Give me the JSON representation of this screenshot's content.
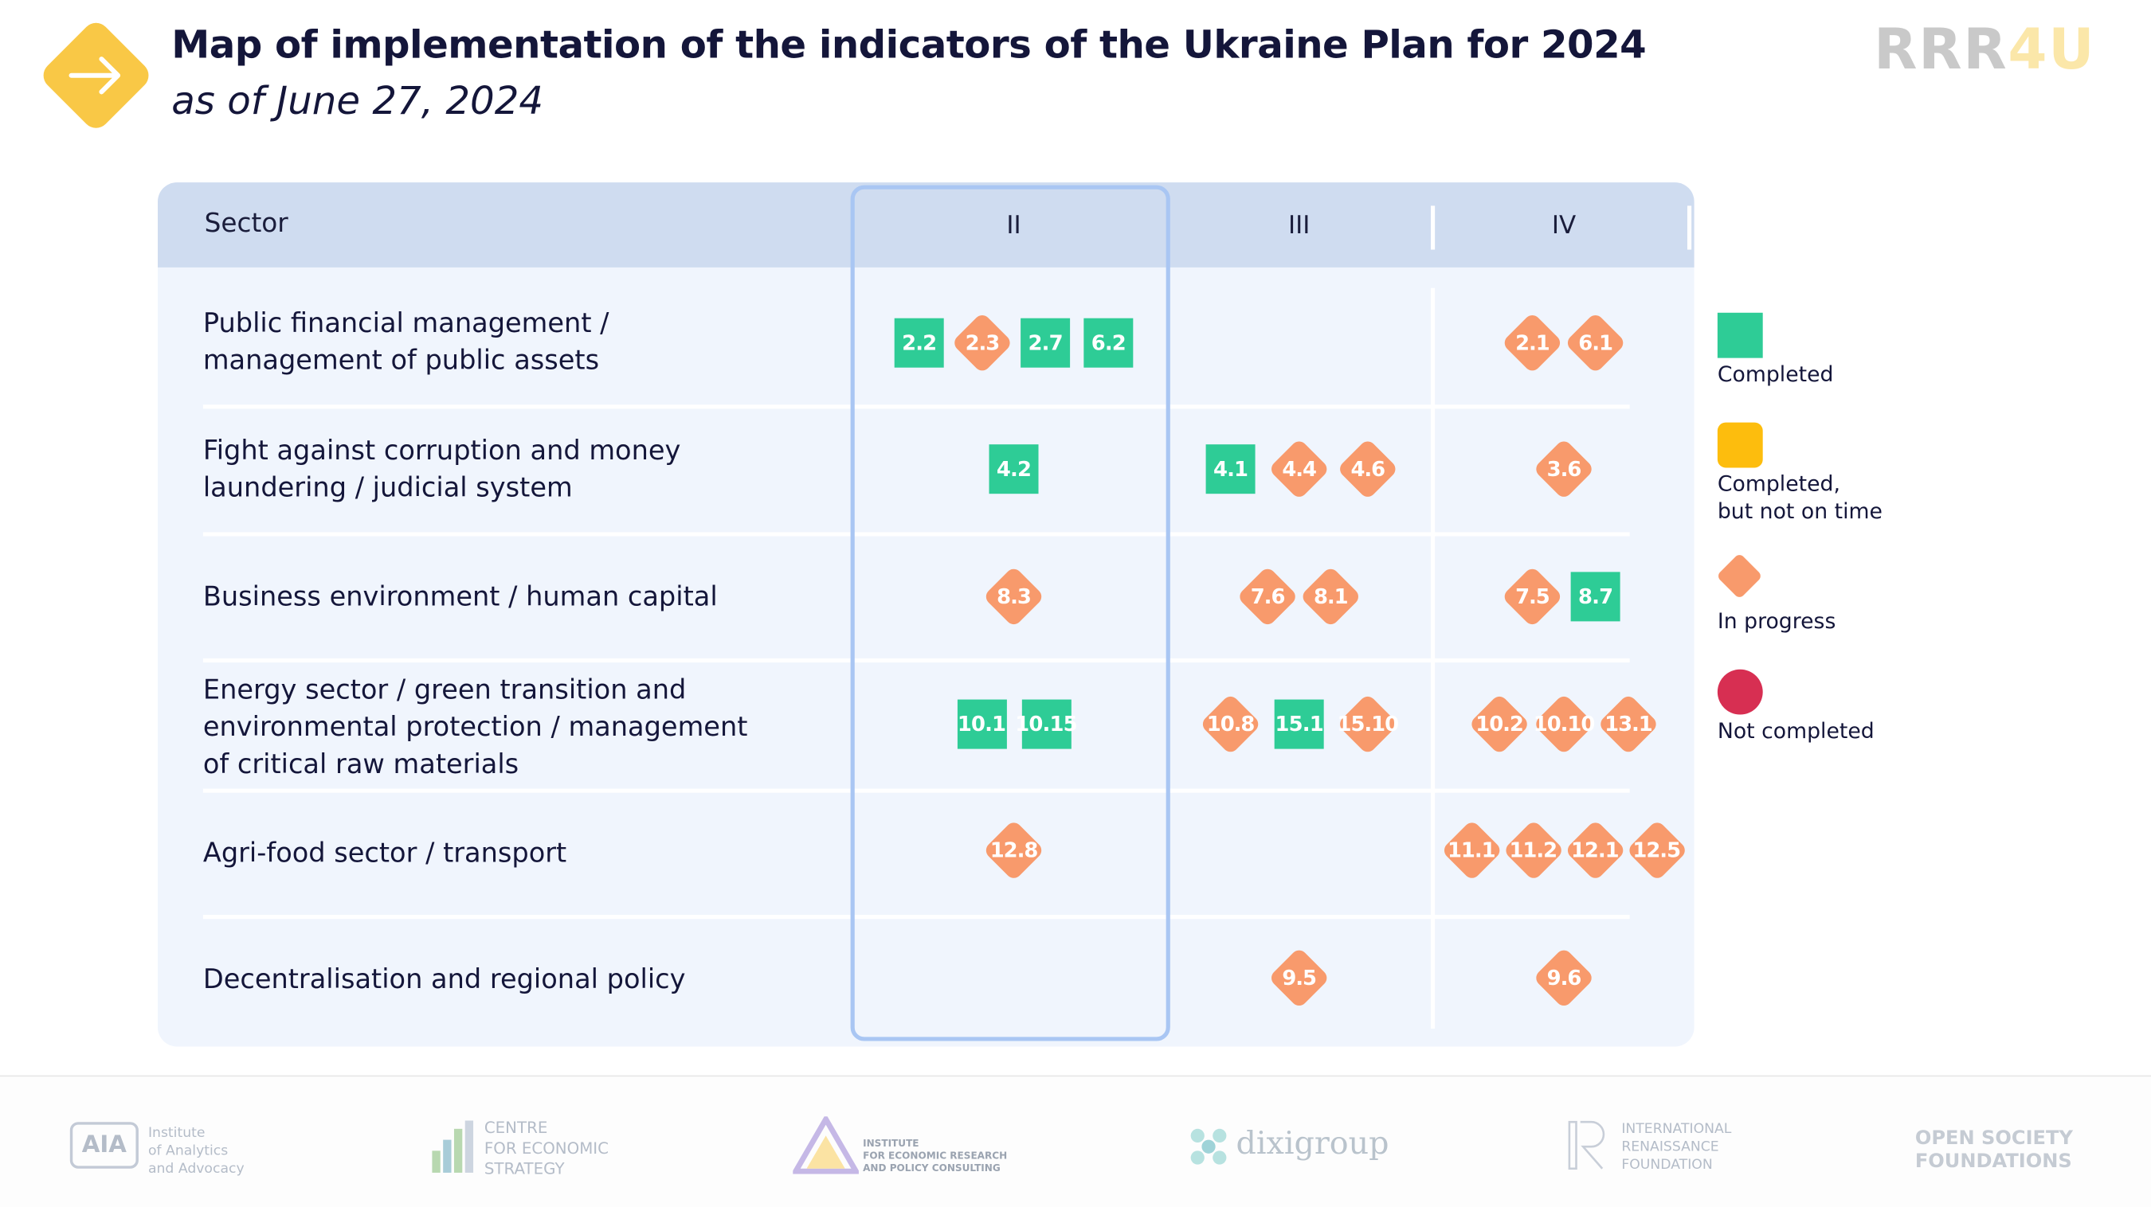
{
  "header": {
    "title": "Map of implementation of the indicators of the Ukraine Plan for 2024",
    "subtitle": "as of June 27, 2024",
    "brand_part1": "RRR",
    "brand_part2": "4U"
  },
  "colors": {
    "completed": "#2ecc96",
    "completed_not_on_time": "#fdbd0d",
    "in_progress": "#f89a6c",
    "not_completed": "#d72f52",
    "header_band": "#cfdcf0",
    "table_bg": "#f0f5fd",
    "highlight_border": "#a9c6f3"
  },
  "chart_data": {
    "type": "table",
    "title": "Map of implementation of the indicators of the Ukraine Plan for 2024",
    "subtitle": "as of June 27, 2024",
    "row_header": "Sector",
    "columns": [
      "II",
      "III",
      "IV"
    ],
    "highlighted_column": "II",
    "rows": [
      {
        "sector": "Public financial management /\nmanagement of public assets",
        "cells": [
          [
            {
              "id": "2.2",
              "status": "completed"
            },
            {
              "id": "2.3",
              "status": "in_progress"
            },
            {
              "id": "2.7",
              "status": "completed"
            },
            {
              "id": "6.2",
              "status": "completed"
            }
          ],
          [],
          [
            {
              "id": "2.1",
              "status": "in_progress"
            },
            {
              "id": "6.1",
              "status": "in_progress"
            }
          ]
        ]
      },
      {
        "sector": "Fight against corruption and money\nlaundering / judicial system",
        "cells": [
          [
            {
              "id": "4.2",
              "status": "completed"
            }
          ],
          [
            {
              "id": "4.1",
              "status": "completed"
            },
            {
              "id": "4.4",
              "status": "in_progress"
            },
            {
              "id": "4.6",
              "status": "in_progress"
            }
          ],
          [
            {
              "id": "3.6",
              "status": "in_progress"
            }
          ]
        ]
      },
      {
        "sector": "Business environment / human capital",
        "cells": [
          [
            {
              "id": "8.3",
              "status": "in_progress"
            }
          ],
          [
            {
              "id": "7.6",
              "status": "in_progress"
            },
            {
              "id": "8.1",
              "status": "in_progress"
            }
          ],
          [
            {
              "id": "7.5",
              "status": "in_progress"
            },
            {
              "id": "8.7",
              "status": "completed"
            }
          ]
        ]
      },
      {
        "sector": "Energy sector / green transition and\nenvironmental protection / management\nof critical raw materials",
        "cells": [
          [
            {
              "id": "10.1",
              "status": "completed"
            },
            {
              "id": "10.15",
              "status": "completed"
            }
          ],
          [
            {
              "id": "10.8",
              "status": "in_progress"
            },
            {
              "id": "15.1",
              "status": "completed"
            },
            {
              "id": "15.10",
              "status": "in_progress"
            }
          ],
          [
            {
              "id": "10.2",
              "status": "in_progress"
            },
            {
              "id": "10.10",
              "status": "in_progress"
            },
            {
              "id": "13.1",
              "status": "in_progress"
            }
          ]
        ]
      },
      {
        "sector": "Agri-food sector / transport",
        "cells": [
          [
            {
              "id": "12.8",
              "status": "in_progress"
            }
          ],
          [],
          [
            {
              "id": "11.1",
              "status": "in_progress"
            },
            {
              "id": "11.2",
              "status": "in_progress"
            },
            {
              "id": "12.1",
              "status": "in_progress"
            },
            {
              "id": "12.5",
              "status": "in_progress"
            }
          ]
        ]
      },
      {
        "sector": "Decentralisation and regional policy",
        "cells": [
          [],
          [
            {
              "id": "9.5",
              "status": "in_progress"
            }
          ],
          [
            {
              "id": "9.6",
              "status": "in_progress"
            }
          ]
        ]
      }
    ],
    "legend": [
      {
        "status": "completed",
        "label": "Completed",
        "shape": "square"
      },
      {
        "status": "completed_not_on_time",
        "label": "Completed,\nbut not on time",
        "shape": "rounded-square"
      },
      {
        "status": "in_progress",
        "label": "In progress",
        "shape": "diamond"
      },
      {
        "status": "not_completed",
        "label": "Not completed",
        "shape": "circle"
      }
    ],
    "legend_position": "right"
  },
  "footer": {
    "partners": [
      {
        "name": "Institute\nof Analytics\nand Advocacy",
        "logo_text": "AIA"
      },
      {
        "name": "CENTRE\nFOR ECONOMIC\nSTRATEGY"
      },
      {
        "name": "INSTITUTE\nFOR ECONOMIC RESEARCH\nAND POLICY CONSULTING"
      },
      {
        "name": "dixigroup"
      },
      {
        "name": "INTERNATIONAL\nRENAISSANCE\nFOUNDATION"
      },
      {
        "name": "OPEN SOCIETY\nFOUNDATIONS"
      }
    ]
  }
}
